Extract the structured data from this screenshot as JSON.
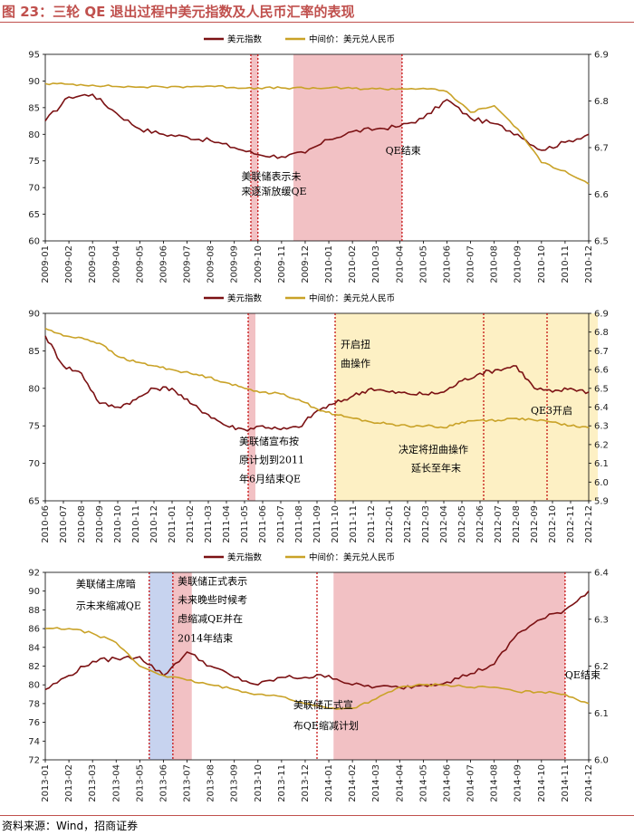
{
  "title": "图 23：三轮 QE 退出过程中美元指数及人民币汇率的表现",
  "source": "资料来源：Wind，招商证券",
  "colors": {
    "dxy": "#7b1113",
    "cny": "#c9a227",
    "shade_pink": "#f2c1c4",
    "shade_yellow": "#fdf0c4",
    "shade_blue": "#c7d3ef",
    "marker": "#c00000",
    "title": "#c0504d"
  },
  "chart_data": [
    {
      "type": "line",
      "legend": [
        "美元指数",
        "中间价：美元兑人民币"
      ],
      "x_labels": [
        "2009-01",
        "2009-02",
        "2009-03",
        "2009-04",
        "2009-05",
        "2009-06",
        "2009-07",
        "2009-08",
        "2009-09",
        "2009-10",
        "2009-11",
        "2009-12",
        "2010-01",
        "2010-02",
        "2010-03",
        "2010-04",
        "2010-05",
        "2010-06",
        "2010-07",
        "2010-08",
        "2010-09",
        "2010-10",
        "2010-11",
        "2010-12"
      ],
      "y_left": [
        60,
        95
      ],
      "y_left_ticks": [
        "60",
        "65",
        "70",
        "75",
        "80",
        "85",
        "90",
        "95"
      ],
      "y_right": [
        6.5,
        6.9
      ],
      "y_right_ticks": [
        "6.5",
        "6.6",
        "6.7",
        "6.8",
        "6.9"
      ],
      "series": [
        {
          "name": "美元指数",
          "axis": "left",
          "values": [
            82.5,
            87,
            87.5,
            84,
            81,
            80,
            79.5,
            78.8,
            77.5,
            76.2,
            75.8,
            76.5,
            79,
            80.5,
            81,
            81.5,
            83,
            86.5,
            83,
            82,
            80,
            77,
            78.5,
            80
          ]
        },
        {
          "name": "中间价：美元兑人民币",
          "axis": "right",
          "values": [
            6.837,
            6.836,
            6.834,
            6.831,
            6.83,
            6.83,
            6.831,
            6.832,
            6.829,
            6.828,
            6.828,
            6.827,
            6.828,
            6.827,
            6.826,
            6.826,
            6.827,
            6.82,
            6.776,
            6.79,
            6.74,
            6.668,
            6.65,
            6.622
          ]
        }
      ],
      "shades": [
        {
          "from": 8.7,
          "to": 9.0,
          "color": "pink"
        },
        {
          "from": 10.5,
          "to": 15.1,
          "color": "pink"
        }
      ],
      "markers": [
        8.7,
        9.0,
        15.1
      ],
      "annotations": [
        {
          "text": "美联储表示未",
          "x": 8.3,
          "y": 71.5
        },
        {
          "text": "来逐渐放缓QE",
          "x": 8.3,
          "y": 68.7
        },
        {
          "text": "QE结束",
          "x": 14.4,
          "y": 76.3
        }
      ]
    },
    {
      "type": "line",
      "legend": [
        "美元指数",
        "中间价：美元兑人民币"
      ],
      "x_labels": [
        "2010-06",
        "2010-07",
        "2010-08",
        "2010-09",
        "2010-10",
        "2010-11",
        "2010-12",
        "2011-01",
        "2011-02",
        "2011-03",
        "2011-04",
        "2011-05",
        "2011-06",
        "2011-07",
        "2011-08",
        "2011-09",
        "2011-10",
        "2011-11",
        "2011-12",
        "2012-01",
        "2012-02",
        "2012-03",
        "2012-04",
        "2012-05",
        "2012-06",
        "2012-07",
        "2012-08",
        "2012-09",
        "2012-10",
        "2012-11",
        "2012-12"
      ],
      "y_left": [
        65,
        90
      ],
      "y_left_ticks": [
        "65",
        "70",
        "75",
        "80",
        "85",
        "90"
      ],
      "y_right": [
        5.9,
        6.9
      ],
      "y_right_ticks": [
        "5.9",
        "6.0",
        "6.1",
        "6.2",
        "6.3",
        "6.4",
        "6.5",
        "6.6",
        "6.7",
        "6.8",
        "6.9"
      ],
      "series": [
        {
          "name": "美元指数",
          "axis": "left",
          "values": [
            87,
            83,
            82,
            78,
            77.5,
            78.5,
            80,
            80,
            78,
            76.5,
            75,
            74.5,
            75,
            74.5,
            74.8,
            77,
            78,
            79,
            80,
            79.5,
            79.3,
            79.2,
            79.5,
            81,
            82,
            82.5,
            83,
            80,
            79.5,
            80,
            79.5
          ]
        },
        {
          "name": "中间价：美元兑人民币",
          "axis": "right",
          "values": [
            6.82,
            6.78,
            6.77,
            6.74,
            6.67,
            6.64,
            6.62,
            6.6,
            6.58,
            6.56,
            6.53,
            6.5,
            6.48,
            6.47,
            6.44,
            6.39,
            6.36,
            6.34,
            6.32,
            6.31,
            6.3,
            6.3,
            6.29,
            6.32,
            6.33,
            6.33,
            6.34,
            6.33,
            6.32,
            6.3,
            6.29
          ]
        }
      ],
      "shades": [
        {
          "from": 11.2,
          "to": 11.6,
          "color": "pink"
        },
        {
          "from": 16.0,
          "to": 30.5,
          "color": "yellow"
        }
      ],
      "markers": [
        11.2,
        16.0,
        24.2,
        27.7
      ],
      "annotations": [
        {
          "text": "开启扭",
          "x": 16.3,
          "y": 85.4
        },
        {
          "text": "曲操作",
          "x": 16.3,
          "y": 82.9
        },
        {
          "text": "美联储宣布按",
          "x": 10.7,
          "y": 72.5
        },
        {
          "text": "原计划到2011",
          "x": 10.7,
          "y": 70.0
        },
        {
          "text": "年6月结束QE",
          "x": 10.7,
          "y": 67.5
        },
        {
          "text": "决定将扭曲操作",
          "x": 19.5,
          "y": 71.4
        },
        {
          "text": "延长至年末",
          "x": 20.2,
          "y": 68.9
        },
        {
          "text": "QE3开启",
          "x": 26.8,
          "y": 76.6
        }
      ]
    },
    {
      "type": "line",
      "legend": [
        "美元指数",
        "中间价：美元兑人民币"
      ],
      "x_labels": [
        "2013-01",
        "2013-02",
        "2013-03",
        "2013-04",
        "2013-05",
        "2013-06",
        "2013-07",
        "2013-08",
        "2013-09",
        "2013-10",
        "2013-11",
        "2013-12",
        "2014-01",
        "2014-02",
        "2014-03",
        "2014-04",
        "2014-05",
        "2014-06",
        "2014-07",
        "2014-08",
        "2014-09",
        "2014-10",
        "2014-11",
        "2014-12"
      ],
      "y_left": [
        72,
        92
      ],
      "y_left_ticks": [
        "72",
        "74",
        "76",
        "78",
        "80",
        "82",
        "84",
        "86",
        "88",
        "90",
        "92"
      ],
      "y_right": [
        6.0,
        6.4
      ],
      "y_right_ticks": [
        "6.0",
        "6.1",
        "6.2",
        "6.3",
        "6.4"
      ],
      "series": [
        {
          "name": "美元指数",
          "axis": "left",
          "values": [
            79.5,
            81,
            82.5,
            82.8,
            83,
            81,
            83.5,
            82,
            80.8,
            80,
            80.8,
            80.8,
            81,
            80,
            79.8,
            79.7,
            80,
            80.3,
            81.2,
            82.2,
            85.5,
            87,
            88,
            90
          ]
        },
        {
          "name": "中间价：美元兑人民币",
          "axis": "right",
          "values": [
            6.28,
            6.28,
            6.27,
            6.25,
            6.2,
            6.18,
            6.17,
            6.16,
            6.15,
            6.14,
            6.135,
            6.12,
            6.11,
            6.11,
            6.13,
            6.155,
            6.16,
            6.16,
            6.155,
            6.155,
            6.145,
            6.145,
            6.14,
            6.12
          ]
        }
      ],
      "shades": [
        {
          "from": 4.4,
          "to": 5.4,
          "color": "blue"
        },
        {
          "from": 5.4,
          "to": 6.2,
          "color": "pink"
        },
        {
          "from": 12.2,
          "to": 22.0,
          "color": "pink"
        }
      ],
      "markers": [
        4.4,
        5.4,
        11.5,
        22.0
      ],
      "annotations": [
        {
          "text": "美联储主席暗",
          "x": 1.3,
          "y": 90.4
        },
        {
          "text": "示未来缩减QE",
          "x": 1.3,
          "y": 88.1
        },
        {
          "text": "美联储正式表示",
          "x": 5.6,
          "y": 90.7
        },
        {
          "text": "未来晚些时候考",
          "x": 5.6,
          "y": 88.7
        },
        {
          "text": "虑缩减QE并在",
          "x": 5.6,
          "y": 86.7
        },
        {
          "text": "2014年结束",
          "x": 5.6,
          "y": 84.6
        },
        {
          "text": "QE结束",
          "x": 22.0,
          "y": 80.7
        },
        {
          "text": "美联储正式宣",
          "x": 10.5,
          "y": 77.5
        },
        {
          "text": "布QE缩减计划",
          "x": 10.5,
          "y": 75.3
        }
      ]
    }
  ]
}
